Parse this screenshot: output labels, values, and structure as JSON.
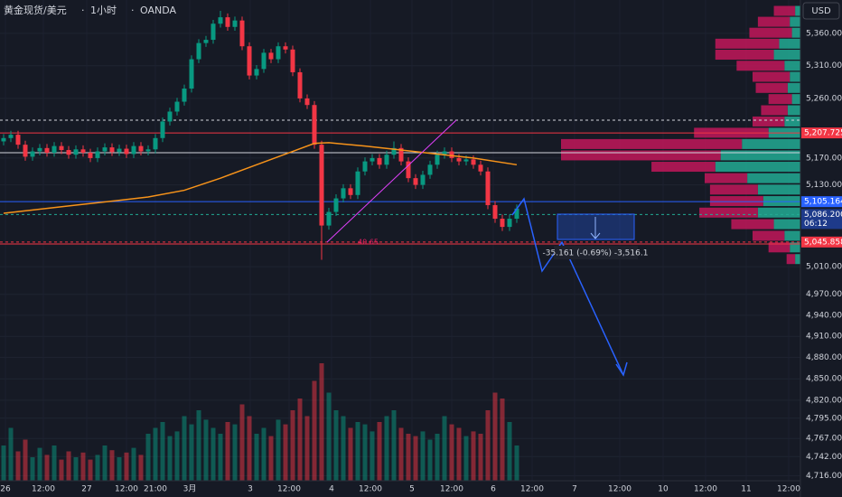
{
  "chart_data": {
    "type": "candlestick",
    "title": "黄金现货/美元",
    "interval": "1小时",
    "source": "OANDA",
    "currency": "USD",
    "log_scale": true,
    "grid": true,
    "up_color": "#089981",
    "down_color": "#f23645",
    "ylim": [
      4709,
      5412
    ],
    "yticks": [
      {
        "value": 5360,
        "label": "5,360.000"
      },
      {
        "value": 5310,
        "label": "5,310.000"
      },
      {
        "value": 5260,
        "label": "5,260.000"
      },
      {
        "value": 5170,
        "label": "5,170.000"
      },
      {
        "value": 5130,
        "label": "5,130.000"
      },
      {
        "value": 5010,
        "label": "5,010.000"
      },
      {
        "value": 4970,
        "label": "4,970.000"
      },
      {
        "value": 4940,
        "label": "4,940.000"
      },
      {
        "value": 4910,
        "label": "4,910.000"
      },
      {
        "value": 4880,
        "label": "4,880.000"
      },
      {
        "value": 4850,
        "label": "4,850.000"
      },
      {
        "value": 4820,
        "label": "4,820.000"
      },
      {
        "value": 4795,
        "label": "4,795.000"
      },
      {
        "value": 4767,
        "label": "4,767.000"
      },
      {
        "value": 4742,
        "label": "4,742.000"
      },
      {
        "value": 4716,
        "label": "4,716.000"
      }
    ],
    "time_labels": [
      "26",
      "12:00",
      "27",
      "12:00",
      "21:00",
      "3月",
      "3",
      "12:00",
      "4",
      "12:00",
      "5",
      "12:00",
      "6",
      "12:00",
      "7",
      "12:00",
      "10",
      "12:00",
      "11",
      "12:00"
    ],
    "open": [
      5195,
      5200,
      5205,
      5190,
      5172,
      5180,
      5185,
      5178,
      5188,
      5182,
      5175,
      5183,
      5178,
      5170,
      5180,
      5186,
      5179,
      5184,
      5176,
      5188,
      5180,
      5183,
      5200,
      5225,
      5240,
      5255,
      5275,
      5320,
      5345,
      5350,
      5375,
      5385,
      5370,
      5380,
      5340,
      5295,
      5305,
      5330,
      5320,
      5340,
      5335,
      5300,
      5260,
      5250,
      5190,
      5070,
      5090,
      5110,
      5125,
      5115,
      5150,
      5165,
      5170,
      5160,
      5175,
      5185,
      5165,
      5140,
      5130,
      5145,
      5160,
      5175,
      5180,
      5170,
      5165,
      5168,
      5160,
      5150,
      5100,
      5080,
      5068,
      5080
    ],
    "high": [
      5206,
      5211,
      5211,
      5196,
      5186,
      5191,
      5191,
      5194,
      5194,
      5188,
      5189,
      5189,
      5184,
      5186,
      5192,
      5192,
      5190,
      5190,
      5194,
      5194,
      5189,
      5206,
      5231,
      5246,
      5261,
      5281,
      5326,
      5351,
      5356,
      5381,
      5395,
      5391,
      5386,
      5386,
      5346,
      5311,
      5336,
      5336,
      5346,
      5346,
      5341,
      5306,
      5266,
      5256,
      5196,
      5096,
      5116,
      5131,
      5131,
      5156,
      5171,
      5176,
      5176,
      5181,
      5195,
      5191,
      5171,
      5146,
      5151,
      5166,
      5181,
      5186,
      5186,
      5176,
      5174,
      5174,
      5166,
      5156,
      5106,
      5086,
      5086,
      5101
    ],
    "low": [
      5189,
      5194,
      5184,
      5166,
      5166,
      5174,
      5172,
      5172,
      5176,
      5169,
      5169,
      5172,
      5164,
      5164,
      5174,
      5173,
      5173,
      5170,
      5170,
      5174,
      5174,
      5177,
      5194,
      5219,
      5234,
      5249,
      5269,
      5314,
      5339,
      5344,
      5369,
      5364,
      5364,
      5334,
      5289,
      5289,
      5299,
      5314,
      5314,
      5329,
      5294,
      5254,
      5244,
      5184,
      5020,
      5064,
      5084,
      5104,
      5109,
      5109,
      5144,
      5159,
      5154,
      5154,
      5169,
      5159,
      5134,
      5124,
      5124,
      5139,
      5154,
      5169,
      5164,
      5159,
      5159,
      5154,
      5144,
      5094,
      5074,
      5062,
      5062,
      5074
    ],
    "close": [
      5200,
      5205,
      5190,
      5172,
      5180,
      5185,
      5178,
      5188,
      5182,
      5175,
      5183,
      5178,
      5170,
      5180,
      5186,
      5179,
      5184,
      5176,
      5188,
      5180,
      5183,
      5200,
      5225,
      5240,
      5255,
      5275,
      5320,
      5345,
      5350,
      5375,
      5385,
      5370,
      5380,
      5340,
      5295,
      5305,
      5330,
      5320,
      5340,
      5335,
      5300,
      5260,
      5250,
      5190,
      5070,
      5090,
      5110,
      5125,
      5115,
      5150,
      5165,
      5170,
      5160,
      5175,
      5185,
      5165,
      5140,
      5130,
      5145,
      5160,
      5175,
      5180,
      5170,
      5165,
      5168,
      5160,
      5150,
      5100,
      5080,
      5068,
      5080,
      5095
    ],
    "volume": [
      30,
      45,
      25,
      35,
      20,
      28,
      22,
      30,
      18,
      25,
      20,
      24,
      18,
      22,
      30,
      26,
      20,
      24,
      28,
      22,
      40,
      45,
      50,
      38,
      42,
      55,
      48,
      60,
      52,
      45,
      40,
      50,
      48,
      65,
      55,
      40,
      45,
      38,
      52,
      48,
      60,
      70,
      55,
      85,
      100,
      75,
      60,
      55,
      45,
      50,
      48,
      42,
      50,
      55,
      60,
      45,
      40,
      38,
      42,
      35,
      40,
      55,
      48,
      45,
      38,
      42,
      40,
      60,
      75,
      70,
      50,
      30
    ],
    "ma": {
      "color": "#f7931a",
      "x": [
        0,
        10,
        20,
        25,
        30,
        35,
        40,
        43,
        45,
        50,
        55,
        60,
        65,
        71
      ],
      "values": [
        5088,
        5100,
        5112,
        5122,
        5140,
        5160,
        5180,
        5192,
        5193,
        5188,
        5182,
        5176,
        5170,
        5160
      ]
    },
    "levels": [
      {
        "value": 5227,
        "color": "#d1d4dc",
        "dash": true
      },
      {
        "value": 5207.725,
        "color": "#f23645",
        "dash": false
      },
      {
        "value": 5178,
        "color": "#d1d4dc",
        "dash": false
      },
      {
        "value": 5105.164,
        "color": "#2962ff",
        "dash": false
      },
      {
        "value": 5086.2,
        "color": "#22ab94",
        "dash": true
      },
      {
        "value": 5045.858,
        "color": "#f23645",
        "dash": true
      },
      {
        "value": 5043,
        "color": "#f23645",
        "dash": false
      }
    ],
    "price_tags": [
      {
        "value": 5207.725,
        "label": "5,207.725",
        "color": "#f23645"
      },
      {
        "value": 5105.164,
        "label": "5,105.164",
        "color": "#2962ff"
      },
      {
        "value": 5086.2,
        "label": "5,086.200",
        "color": "#1e3a8a",
        "countdown": "06:12"
      },
      {
        "value": 5045.858,
        "label": "5,045.858",
        "color": "#f23645"
      }
    ],
    "fib_label": "40.65",
    "measure_label": "-35.161 (-0.69%) -3,516.1",
    "volume_profile": {
      "up_color": "#22ab94",
      "down_color": "#c2185b",
      "prices": [
        5395,
        5378,
        5361,
        5344,
        5327,
        5310,
        5293,
        5276,
        5259,
        5242,
        5225,
        5208,
        5191,
        5174,
        5157,
        5140,
        5123,
        5106,
        5089,
        5072,
        5055,
        5038,
        5021
      ],
      "up": [
        5,
        10,
        8,
        20,
        25,
        15,
        10,
        12,
        8,
        12,
        15,
        30,
        55,
        75,
        80,
        50,
        40,
        35,
        40,
        25,
        15,
        10,
        5
      ],
      "down": [
        20,
        30,
        40,
        60,
        55,
        45,
        35,
        30,
        22,
        25,
        30,
        70,
        170,
        150,
        60,
        40,
        45,
        50,
        55,
        40,
        30,
        20,
        8
      ]
    }
  }
}
